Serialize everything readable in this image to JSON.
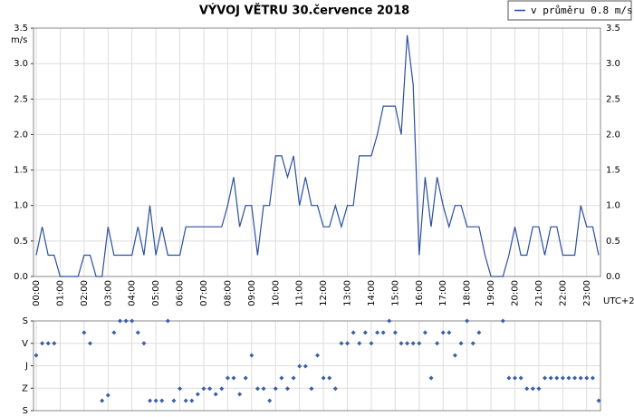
{
  "chart_data": [
    {
      "type": "line",
      "title": "VÝVOJ VĚTRU  30.července 2018",
      "y_label": "m/s",
      "x_label": "UTC+2",
      "legend": "top-right",
      "grid": true,
      "categories": [
        "00:00",
        null,
        null,
        null,
        "01:00",
        null,
        null,
        null,
        "02:00",
        null,
        null,
        null,
        "03:00",
        null,
        null,
        null,
        "04:00",
        null,
        null,
        null,
        "05:00",
        null,
        null,
        null,
        "06:00",
        null,
        null,
        null,
        "07:00",
        null,
        null,
        null,
        "08:00",
        null,
        null,
        null,
        "09:00",
        null,
        null,
        null,
        "10:00",
        null,
        null,
        null,
        "11:00",
        null,
        null,
        null,
        "12:00",
        null,
        null,
        null,
        "13:00",
        null,
        null,
        null,
        "14:00",
        null,
        null,
        null,
        "15:00",
        null,
        null,
        null,
        "16:00",
        null,
        null,
        null,
        "17:00",
        null,
        null,
        null,
        "18:00",
        null,
        null,
        null,
        "19:00",
        null,
        null,
        null,
        "20:00",
        null,
        null,
        null,
        "21:00",
        null,
        null,
        null,
        "22:00",
        null,
        null,
        null,
        "23:00",
        null,
        null
      ],
      "series": [
        {
          "name": "v průměru 0.8 m/s",
          "color": "#2b4f9e",
          "values": [
            0.3,
            0.7,
            0.3,
            0.3,
            0,
            0,
            0,
            0,
            0.3,
            0.3,
            0,
            0,
            0.7,
            0.3,
            0.3,
            0.3,
            0.3,
            0.7,
            0.3,
            1.0,
            0.3,
            0.7,
            0.3,
            0.3,
            0.3,
            0.7,
            0.7,
            0.7,
            0.7,
            0.7,
            0.7,
            0.7,
            1.0,
            1.4,
            0.7,
            1.0,
            1.0,
            0.3,
            1.0,
            1.0,
            1.7,
            1.7,
            1.4,
            1.7,
            1.0,
            1.4,
            1.0,
            1.0,
            0.7,
            0.7,
            1.0,
            0.7,
            1.0,
            1.0,
            1.7,
            1.7,
            1.7,
            2.0,
            2.4,
            2.4,
            2.4,
            2.0,
            3.4,
            2.7,
            0.3,
            1.4,
            0.7,
            1.4,
            1.0,
            0.7,
            1.0,
            1.0,
            0.7,
            0.7,
            0.7,
            0.3,
            0,
            0,
            0,
            0.3,
            0.7,
            0.3,
            0.3,
            0.7,
            0.7,
            0.3,
            0.7,
            0.7,
            0.3,
            0.3,
            0.3,
            1.0,
            0.7,
            0.7,
            0.3
          ]
        }
      ],
      "ylim": [
        0,
        3.5
      ],
      "yticks": [
        {
          "value": 0,
          "label": "0.0"
        },
        0.5,
        {
          "value": 1,
          "label": "1.0"
        },
        1.5,
        {
          "value": 2,
          "label": "2.0"
        },
        2.5,
        {
          "value": 3,
          "label": "3.0"
        },
        3.5
      ]
    },
    {
      "type": "scatter",
      "color": "#3a5fa8",
      "grid": true,
      "values": [
        138,
        90,
        90,
        90,
        null,
        null,
        null,
        null,
        47,
        90,
        null,
        320,
        298,
        47,
        0,
        0,
        0,
        47,
        90,
        320,
        320,
        320,
        0,
        320,
        272,
        320,
        320,
        294,
        272,
        272,
        294,
        272,
        229,
        229,
        294,
        229,
        138,
        272,
        272,
        320,
        272,
        229,
        272,
        229,
        182,
        182,
        272,
        138,
        229,
        229,
        272,
        90,
        90,
        47,
        90,
        47,
        90,
        47,
        47,
        0,
        47,
        90,
        90,
        90,
        90,
        47,
        229,
        90,
        47,
        47,
        138,
        90,
        0,
        90,
        47,
        null,
        null,
        null,
        0,
        229,
        229,
        229,
        272,
        272,
        272,
        229,
        229,
        229,
        229,
        229,
        229,
        229,
        229,
        229,
        320
      ],
      "ylim": [
        360,
        0
      ],
      "yticks": [
        {
          "value": 0,
          "label": "S"
        },
        {
          "value": 90,
          "label": "V"
        },
        {
          "value": 180,
          "label": "J"
        },
        {
          "value": 270,
          "label": "Z"
        },
        {
          "value": 360,
          "label": "S"
        }
      ]
    }
  ]
}
